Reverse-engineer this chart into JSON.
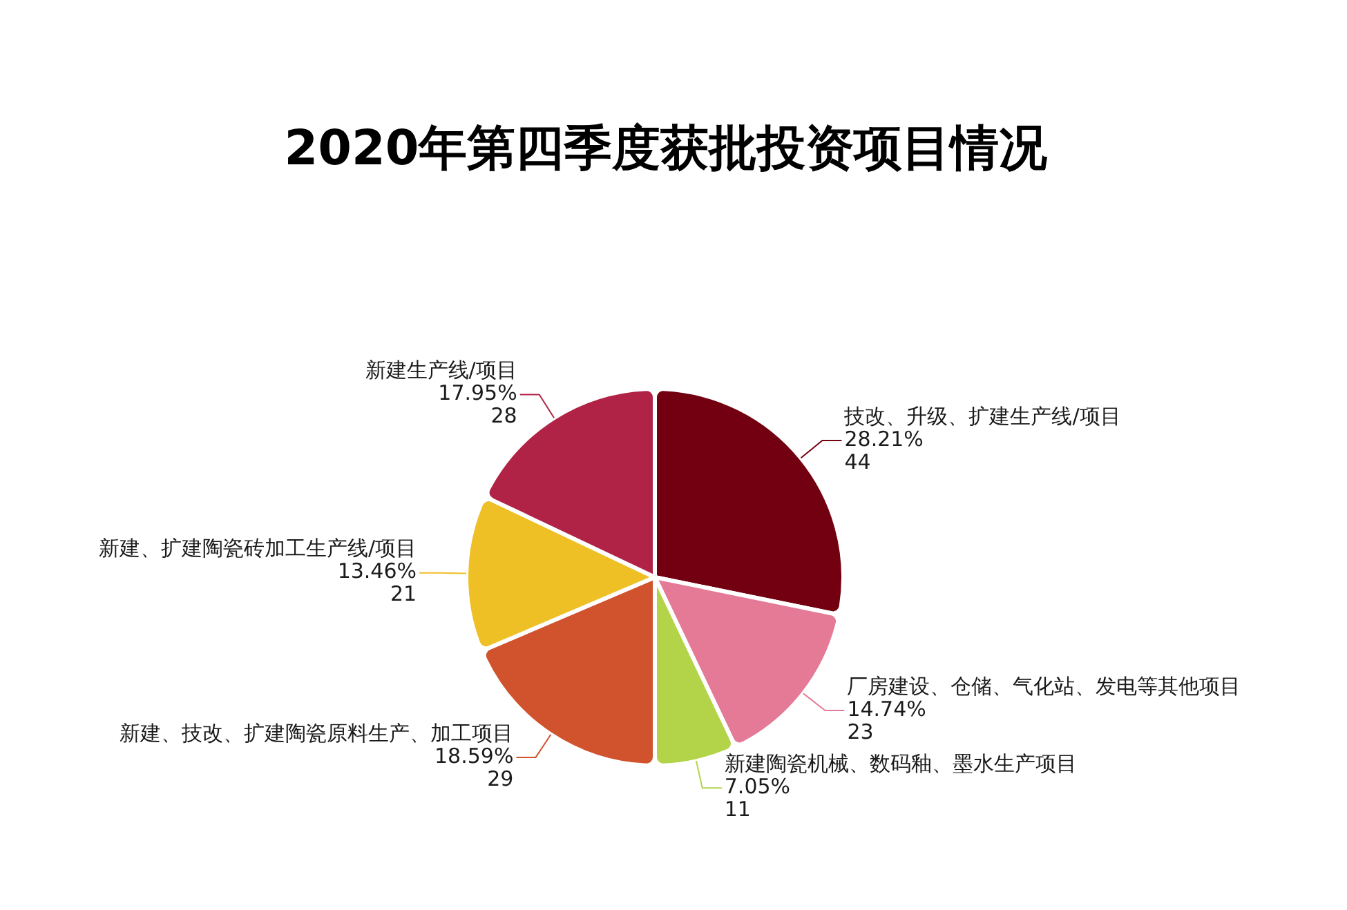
{
  "chart_data": {
    "type": "pie",
    "title": "2020年第四季度获批投资项目情况",
    "categories": [
      "技改、升级、扩建生产线/项目",
      "厂房建设、仓储、气化站、发电等其他项目",
      "新建陶瓷机械、数码釉、墨水生产项目",
      "新建、技改、扩建陶瓷原料生产、加工项目",
      "新建、扩建陶瓷砖加工生产线/项目",
      "新建生产线/项目"
    ],
    "values": [
      44,
      23,
      11,
      29,
      21,
      28
    ],
    "colors": [
      "#730010",
      "#e57a97",
      "#b3d449",
      "#d0532d",
      "#efbf26",
      "#b02346"
    ],
    "value_labels": [
      "28.21%\n44",
      "14.74%\n23",
      "7.05%\n11",
      "18.59%\n29",
      "13.46%\n21",
      "17.95%\n28"
    ],
    "legend": false
  }
}
